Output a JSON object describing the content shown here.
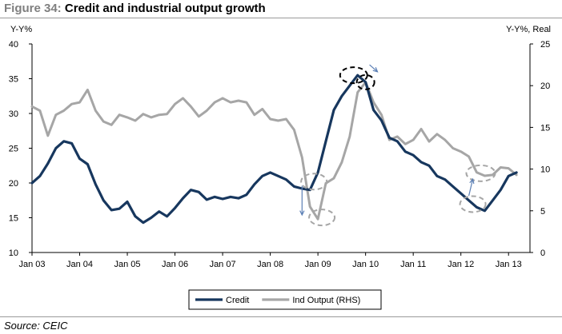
{
  "figure": {
    "number": "Figure 34:",
    "title": "Credit and industrial output growth",
    "source": "Source: CEIC"
  },
  "chart_data": {
    "type": "line",
    "title": "Credit and industrial output growth",
    "ylabel_left": "Y-Y%",
    "ylabel_right": "Y-Y%, Real",
    "left_axis": {
      "min": 10,
      "max": 40,
      "ticks": [
        10,
        15,
        20,
        25,
        30,
        35,
        40
      ]
    },
    "right_axis": {
      "min": 0,
      "max": 25,
      "ticks": [
        0,
        5,
        10,
        15,
        20,
        25
      ]
    },
    "x_tick_labels": [
      "Jan 03",
      "Jan 04",
      "Jan 05",
      "Jan 06",
      "Jan 07",
      "Jan 08",
      "Jan 09",
      "Jan 10",
      "Jan 11",
      "Jan 12",
      "Jan 13"
    ],
    "x_tick_dates": [
      "2003-01",
      "2004-01",
      "2005-01",
      "2006-01",
      "2007-01",
      "2008-01",
      "2009-01",
      "2010-01",
      "2011-01",
      "2012-01",
      "2013-01"
    ],
    "grid": false,
    "legend_position": "bottom",
    "series": [
      {
        "name": "Credit",
        "axis": "left",
        "color": "#17375e",
        "x": [
          "2003-01",
          "2003-03",
          "2003-05",
          "2003-07",
          "2003-09",
          "2003-11",
          "2004-01",
          "2004-03",
          "2004-05",
          "2004-07",
          "2004-09",
          "2004-11",
          "2005-01",
          "2005-03",
          "2005-05",
          "2005-07",
          "2005-09",
          "2005-11",
          "2006-01",
          "2006-03",
          "2006-05",
          "2006-07",
          "2006-09",
          "2006-11",
          "2007-01",
          "2007-03",
          "2007-05",
          "2007-07",
          "2007-09",
          "2007-11",
          "2008-01",
          "2008-03",
          "2008-05",
          "2008-07",
          "2008-09",
          "2008-11",
          "2009-01",
          "2009-03",
          "2009-05",
          "2009-07",
          "2009-09",
          "2009-11",
          "2010-01",
          "2010-03",
          "2010-05",
          "2010-07",
          "2010-09",
          "2010-11",
          "2011-01",
          "2011-03",
          "2011-05",
          "2011-07",
          "2011-09",
          "2011-11",
          "2012-01",
          "2012-03",
          "2012-05",
          "2012-07",
          "2012-09",
          "2012-11",
          "2013-01",
          "2013-03"
        ],
        "values": [
          20.0,
          21.0,
          22.8,
          25.0,
          26.0,
          25.7,
          23.5,
          22.7,
          19.8,
          17.5,
          16.1,
          16.3,
          17.3,
          15.2,
          14.3,
          15.0,
          15.9,
          15.2,
          16.4,
          17.8,
          19.0,
          18.7,
          17.6,
          18.0,
          17.7,
          18.0,
          17.8,
          18.3,
          19.8,
          21.0,
          21.5,
          21.0,
          20.5,
          19.5,
          19.2,
          19.0,
          21.5,
          26.0,
          30.5,
          32.5,
          34.0,
          35.5,
          34.5,
          30.5,
          29.0,
          26.5,
          26.0,
          24.5,
          24.0,
          23.0,
          22.5,
          21.0,
          20.5,
          19.5,
          18.5,
          17.5,
          16.5,
          16.0,
          17.5,
          19.0,
          21.0,
          21.5
        ]
      },
      {
        "name": "Ind Output (RHS)",
        "axis": "right",
        "color": "#a6a6a6",
        "x": [
          "2003-01",
          "2003-03",
          "2003-05",
          "2003-07",
          "2003-09",
          "2003-11",
          "2004-01",
          "2004-03",
          "2004-05",
          "2004-07",
          "2004-09",
          "2004-11",
          "2005-01",
          "2005-03",
          "2005-05",
          "2005-07",
          "2005-09",
          "2005-11",
          "2006-01",
          "2006-03",
          "2006-05",
          "2006-07",
          "2006-09",
          "2006-11",
          "2007-01",
          "2007-03",
          "2007-05",
          "2007-07",
          "2007-09",
          "2007-11",
          "2008-01",
          "2008-03",
          "2008-05",
          "2008-07",
          "2008-09",
          "2008-11",
          "2009-01",
          "2009-03",
          "2009-05",
          "2009-07",
          "2009-09",
          "2009-11",
          "2010-01",
          "2010-03",
          "2010-05",
          "2010-07",
          "2010-09",
          "2010-11",
          "2011-01",
          "2011-03",
          "2011-05",
          "2011-07",
          "2011-09",
          "2011-11",
          "2012-01",
          "2012-03",
          "2012-05",
          "2012-07",
          "2012-09",
          "2012-11",
          "2013-01",
          "2013-03"
        ],
        "values": [
          17.5,
          17.0,
          14.0,
          16.5,
          17.0,
          17.8,
          18.0,
          19.5,
          17.0,
          15.7,
          15.3,
          16.5,
          16.2,
          15.8,
          16.6,
          16.2,
          16.5,
          16.6,
          17.8,
          18.5,
          17.5,
          16.3,
          17.0,
          18.0,
          18.5,
          18.0,
          18.2,
          18.0,
          16.5,
          17.2,
          16.0,
          15.8,
          16.0,
          14.7,
          11.4,
          5.5,
          4.0,
          8.3,
          8.9,
          10.8,
          13.9,
          19.2,
          20.4,
          18.0,
          16.5,
          13.5,
          13.9,
          13.0,
          13.5,
          14.8,
          13.3,
          14.2,
          13.5,
          12.5,
          12.1,
          11.5,
          9.6,
          9.2,
          9.3,
          10.2,
          10.1,
          9.3
        ]
      }
    ]
  }
}
